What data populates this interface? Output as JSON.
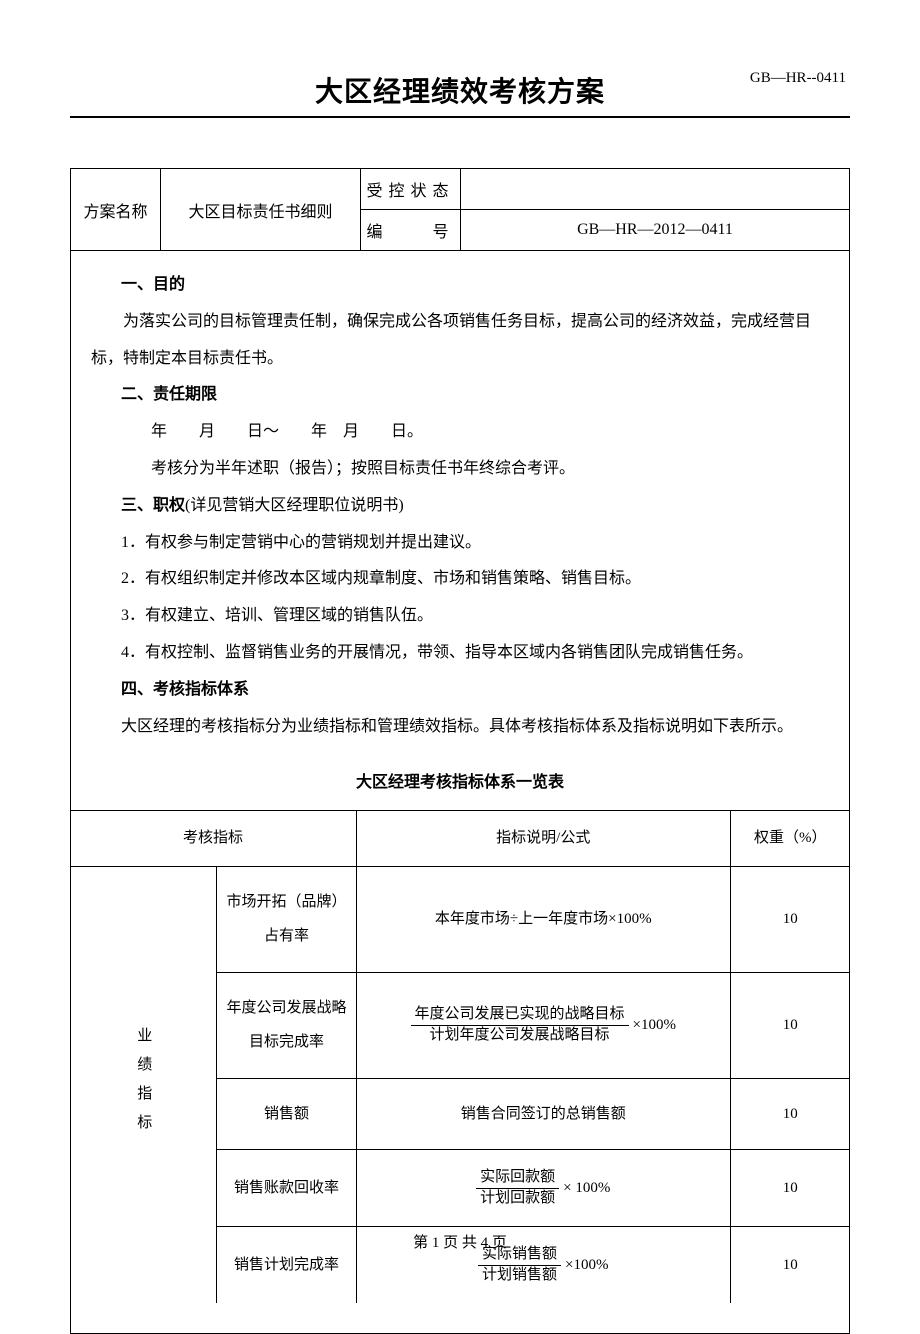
{
  "doc": {
    "title": "大区经理绩效考核方案",
    "code": "GB—HR--0411",
    "footer": "第 1 页 共 4 页"
  },
  "meta": {
    "row1_label": "方案名称",
    "row1_value": "大区目标责任书细则",
    "ctrl_label": "受控状态",
    "ctrl_value": "",
    "num_label": "编　　号",
    "num_value": "GB—HR—2012—0411"
  },
  "sections": {
    "s1_h": "一、目的",
    "s1_p": "为落实公司的目标管理责任制，确保完成公各项销售任务目标，提高公司的经济效益，完成经营目标，特制定本目标责任书。",
    "s2_h": "二、责任期限",
    "s2_p1": "年　　月　　日～　　年　月　　日。",
    "s2_p2": "考核分为半年述职（报告）；按照目标责任书年终综合考评。",
    "s3_h_a": "三、职权",
    "s3_h_b": "(详见营销大区经理职位说明书)",
    "s3_1": "1．有权参与制定营销中心的营销规划并提出建议。",
    "s3_2": "2．有权组织制定并修改本区域内规章制度、市场和销售策略、销售目标。",
    "s3_3": "3．有权建立、培训、管理区域的销售队伍。",
    "s3_4": "4．有权控制、监督销售业务的开展情况，带领、指导本区域内各销售团队完成销售任务。",
    "s4_h": "四、考核指标体系",
    "s4_p": "大区经理的考核指标分为业绩指标和管理绩效指标。具体考核指标体系及指标说明如下表所示。"
  },
  "table": {
    "title": "大区经理考核指标体系一览表",
    "h1": "考核指标",
    "h2": "指标说明/公式",
    "h3": "权重（%）",
    "vert": "业绩指标",
    "rows": [
      {
        "metric": "市场开拓（品牌）占有率",
        "formula_plain": "本年度市场÷上一年度市场×100%",
        "weight": "10"
      },
      {
        "metric": "年度公司发展战略目标完成率",
        "frac_top": "年度公司发展已实现的战略目标",
        "frac_bot": "计划年度公司发展战略目标",
        "suffix": "×100%",
        "weight": "10"
      },
      {
        "metric": "销售额",
        "formula_plain": "销售合同签订的总销售额",
        "weight": "10"
      },
      {
        "metric": "销售账款回收率",
        "frac_top": "实际回款额",
        "frac_bot": "计划回款额",
        "suffix": "× 100%",
        "weight": "10"
      },
      {
        "metric": "销售计划完成率",
        "frac_top": "实际销售额",
        "frac_bot": "计划销售额",
        "suffix": "×100%",
        "weight": "10"
      }
    ]
  }
}
